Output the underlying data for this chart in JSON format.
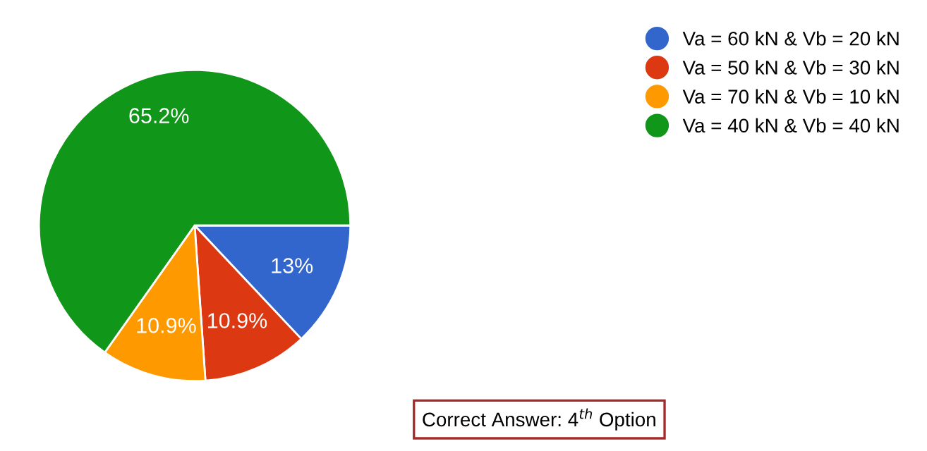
{
  "chart_data": {
    "type": "pie",
    "categories": [
      "Va = 60 kN & Vb = 20 kN",
      "Va = 50 kN & Vb = 30 kN",
      "Va = 70 kN & Vb = 10 kN",
      "Va = 40 kN & Vb = 40 kN"
    ],
    "values": [
      13,
      10.9,
      10.9,
      65.2
    ],
    "colors": [
      "#3366cc",
      "#dc3912",
      "#ff9900",
      "#109618"
    ],
    "value_labels": [
      "13%",
      "10.9%",
      "10.9%",
      "65.2%"
    ],
    "legend": "top right",
    "annotations": [
      "Correct Answer: 4$^{th}$ Option"
    ]
  }
}
